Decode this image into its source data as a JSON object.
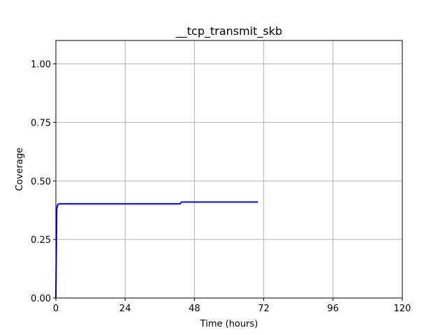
{
  "chart_data": {
    "type": "line",
    "title": "__tcp_transmit_skb",
    "xlabel": "Time (hours)",
    "ylabel": "Coverage",
    "xlim": [
      0,
      120
    ],
    "ylim": [
      0,
      1.1
    ],
    "xticks": [
      0,
      24,
      48,
      72,
      96,
      120
    ],
    "xtick_labels": [
      "0",
      "24",
      "48",
      "72",
      "96",
      "120"
    ],
    "yticks": [
      0,
      0.25,
      0.5,
      0.75,
      1.0
    ],
    "ytick_labels": [
      "0.00",
      "0.25",
      "0.50",
      "0.75",
      "1.00"
    ],
    "grid": true,
    "series": [
      {
        "color": "#0000ff",
        "x": [
          0,
          0.3,
          0.6,
          1,
          43,
          43.5,
          70
        ],
        "y": [
          0,
          0.38,
          0.398,
          0.402,
          0.402,
          0.41,
          0.41
        ]
      }
    ]
  }
}
